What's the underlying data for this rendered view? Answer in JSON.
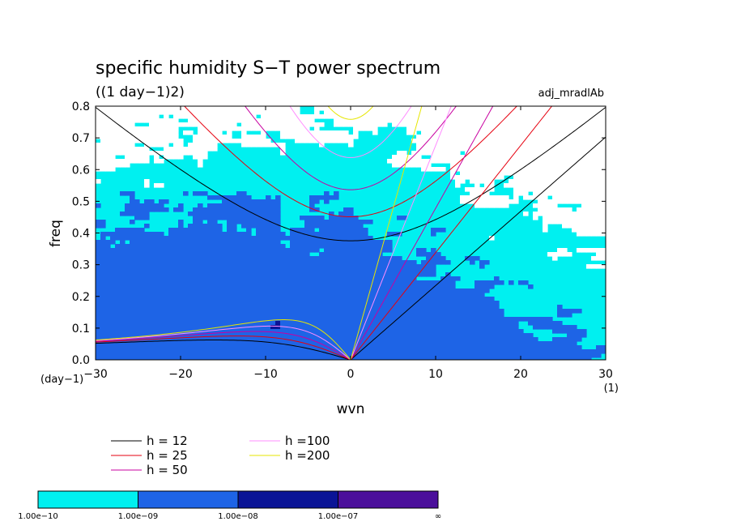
{
  "chart_data": {
    "type": "contour",
    "title": "specific humidity S−T power spectrum",
    "subtitle": "((1 day−1)2)",
    "tag": "adj_mradlAb",
    "xlabel": "wvn",
    "ylabel": "freq",
    "x_unit": "(1)",
    "y_unit": "(day−1)",
    "xlim": [
      -30,
      30
    ],
    "ylim": [
      0,
      0.8
    ],
    "xticks": [
      -30,
      -20,
      -10,
      0,
      10,
      20,
      30
    ],
    "yticks": [
      0.0,
      0.1,
      0.2,
      0.3,
      0.4,
      0.5,
      0.6,
      0.7,
      0.8
    ],
    "xtick_labels": [
      "−30",
      "−20",
      "−10",
      "0",
      "10",
      "20",
      "30"
    ],
    "ytick_labels": [
      "0.0",
      "0.1",
      "0.2",
      "0.3",
      "0.4",
      "0.5",
      "0.6",
      "0.7",
      "0.8"
    ],
    "fill_levels": [
      "1.00e−10",
      "1.00e−09",
      "1.00e−08",
      "1.00e−07",
      "∞"
    ],
    "fill_colors": [
      "#ffffff",
      "#00f0f0",
      "#1e64e6",
      "#0a1496",
      "#4b0f9b"
    ],
    "series": [
      {
        "name": "h = 12",
        "h": 12,
        "color": "#000000"
      },
      {
        "name": "h = 25",
        "h": 25,
        "color": "#e6000f"
      },
      {
        "name": "h = 50",
        "h": 50,
        "color": "#c800a0"
      },
      {
        "name": "h =100",
        "h": 100,
        "color": "#ff8cff"
      },
      {
        "name": "h =200",
        "h": 200,
        "color": "#e6e600"
      }
    ]
  }
}
